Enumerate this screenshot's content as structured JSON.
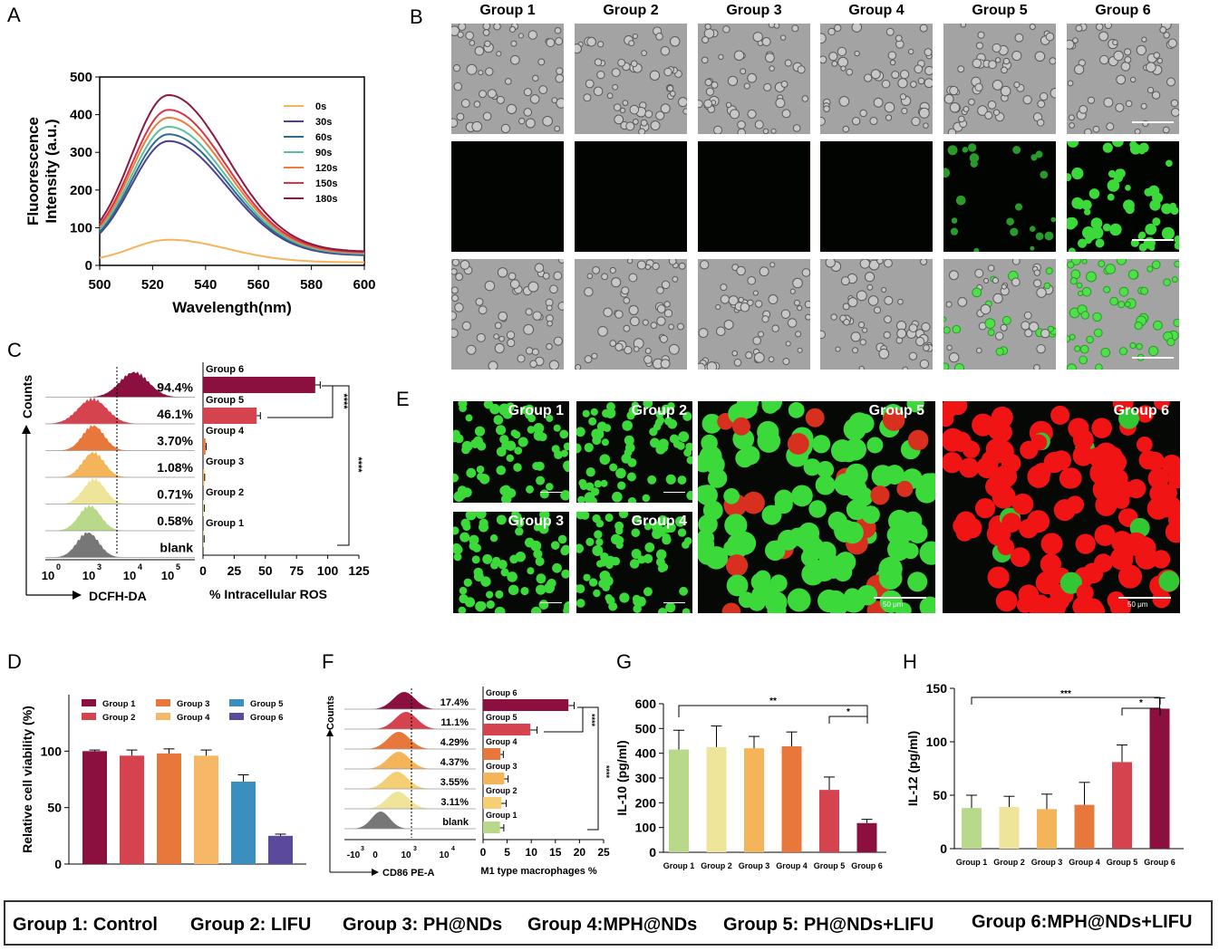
{
  "panels": {
    "A": "A",
    "B": "B",
    "C": "C",
    "D": "D",
    "E": "E",
    "F": "F",
    "G": "G",
    "H": "H"
  },
  "groups": [
    "Group 1",
    "Group 2",
    "Group 3",
    "Group 4",
    "Group 5",
    "Group 6"
  ],
  "panelE_tiles": [
    "Group 1",
    "Group 2",
    "Group 3",
    "Group 4",
    "Group 5",
    "Group 6"
  ],
  "panelE_scale": "50 μm",
  "legend": [
    "Group 1: Control",
    "Group 2: LIFU",
    "Group 3: PH@NDs",
    "Group 4:MPH@NDs",
    "Group 5: PH@NDs+LIFU",
    "Group 6:MPH@NDs+LIFU"
  ],
  "colors": {
    "g1": "#b8d98a",
    "g2": "#efe59a",
    "g3": "#f3b45a",
    "g4": "#e8773c",
    "g5": "#d5434f",
    "g6": "#8b1040"
  },
  "chart_data": [
    {
      "id": "A",
      "type": "line",
      "xlabel": "Wavelength(nm)",
      "ylabel": "Fluoorescence\nIntensity  (a.u.)",
      "xlim": [
        500,
        600
      ],
      "ylim": [
        0,
        500
      ],
      "xticks": [
        500,
        520,
        540,
        560,
        580,
        600
      ],
      "yticks": [
        0,
        100,
        200,
        300,
        400,
        500
      ],
      "legend_position": "right",
      "series": [
        {
          "name": "0s",
          "color": "#f6b35a",
          "peak": 68,
          "tail": 8
        },
        {
          "name": "30s",
          "color": "#4b3f92",
          "peak": 330,
          "tail": 26
        },
        {
          "name": "60s",
          "color": "#2c6d8e",
          "peak": 348,
          "tail": 28
        },
        {
          "name": "90s",
          "color": "#5bbf9f",
          "peak": 368,
          "tail": 30
        },
        {
          "name": "120s",
          "color": "#f07c3b",
          "peak": 392,
          "tail": 32
        },
        {
          "name": "150s",
          "color": "#d8344a",
          "peak": 413,
          "tail": 34
        },
        {
          "name": "180s",
          "color": "#8a1a42",
          "peak": 452,
          "tail": 36
        }
      ]
    },
    {
      "id": "C-hist",
      "type": "histogram",
      "ylabel": "Counts",
      "xlabel": "DCFH-DA",
      "xticks": [
        "10",
        "10",
        "10",
        "10",
        "10"
      ],
      "xtick_exp": [
        "0",
        "3",
        "4",
        "5"
      ],
      "rows": [
        {
          "label": "94.4%",
          "color": "#8b1040"
        },
        {
          "label": "46.1%",
          "color": "#d5434f"
        },
        {
          "label": "3.70%",
          "color": "#e8773c"
        },
        {
          "label": "1.08%",
          "color": "#f3b45a"
        },
        {
          "label": "0.71%",
          "color": "#efe59a"
        },
        {
          "label": "0.58%",
          "color": "#b8d98a"
        },
        {
          "label": "blank",
          "color": "#777777"
        }
      ]
    },
    {
      "id": "C-bar",
      "type": "bar",
      "orientation": "horizontal",
      "xlabel": "% Intracellular ROS",
      "xlim": [
        0,
        125
      ],
      "xticks": [
        0,
        25,
        50,
        75,
        100,
        125
      ],
      "categories": [
        "Group 6",
        "Group 5",
        "Group 4",
        "Group 3",
        "Group 2",
        "Group 1"
      ],
      "values": [
        90,
        43,
        2,
        1,
        0.7,
        0.6
      ],
      "errors": [
        4,
        3,
        0.5,
        0.3,
        0.3,
        0.3
      ],
      "significance": [
        "****",
        "****"
      ]
    },
    {
      "id": "D",
      "type": "bar",
      "ylabel": "Relative cell viability  (%)",
      "ylim": [
        0,
        150
      ],
      "yticks": [
        0,
        50,
        100
      ],
      "categories": [
        "Group 1",
        "Group 2",
        "Group 3",
        "Group 4",
        "Group 5",
        "Group 6"
      ],
      "values": [
        100,
        96,
        98,
        96,
        73,
        25
      ],
      "errors": [
        1,
        5,
        4,
        5,
        6,
        1.5
      ],
      "legend_position": "top"
    },
    {
      "id": "F-hist",
      "type": "histogram",
      "ylabel": "Counts",
      "xlabel": "CD86 PE-A",
      "xtick_text": [
        "-10",
        "0",
        "10",
        "10"
      ],
      "xtick_exp": [
        "3",
        "",
        "3",
        "4"
      ],
      "rows": [
        {
          "label": "17.4%",
          "color": "#8b1040"
        },
        {
          "label": "11.1%",
          "color": "#d5434f"
        },
        {
          "label": "4.29%",
          "color": "#e8773c"
        },
        {
          "label": "4.37%",
          "color": "#f3b45a"
        },
        {
          "label": "3.55%",
          "color": "#f6cf74"
        },
        {
          "label": "3.11%",
          "color": "#efe59a"
        },
        {
          "label": "blank",
          "color": "#777777"
        }
      ]
    },
    {
      "id": "F-bar",
      "type": "bar",
      "orientation": "horizontal",
      "xlabel": "M1 type macrophages %",
      "xlim": [
        0,
        25
      ],
      "xticks": [
        0,
        5,
        10,
        15,
        20,
        25
      ],
      "categories": [
        "Group 6",
        "Group 5",
        "Group 4",
        "Group 3",
        "Group 2",
        "Group 1"
      ],
      "values": [
        17.7,
        9.8,
        3.6,
        4.4,
        3.8,
        3.5
      ],
      "errors": [
        1.2,
        1.4,
        0.6,
        0.8,
        1.0,
        0.8
      ],
      "significance": [
        "****",
        "****"
      ]
    },
    {
      "id": "G",
      "type": "bar",
      "ylabel": "IL-10  (pg/ml)",
      "ylim": [
        0,
        600
      ],
      "yticks": [
        0,
        100,
        200,
        300,
        400,
        500,
        600
      ],
      "categories": [
        "Group 1",
        "Group 2",
        "Group 3",
        "Group 4",
        "Group 5",
        "Group 6"
      ],
      "values": [
        415,
        425,
        420,
        428,
        252,
        118
      ],
      "errors": [
        78,
        85,
        48,
        58,
        52,
        15
      ],
      "significance": [
        "**",
        "*"
      ]
    },
    {
      "id": "H",
      "type": "bar",
      "ylabel": "IL-12  (pg/ml)",
      "ylim": [
        0,
        150
      ],
      "yticks": [
        0,
        50,
        100,
        150
      ],
      "categories": [
        "Group 1",
        "Group 2",
        "Group 3",
        "Group 4",
        "Group 5",
        "Group 6"
      ],
      "values": [
        38,
        39,
        37,
        41,
        81,
        131
      ],
      "errors": [
        12,
        10,
        14,
        21,
        16,
        10
      ],
      "significance": [
        "***",
        "*"
      ]
    }
  ]
}
